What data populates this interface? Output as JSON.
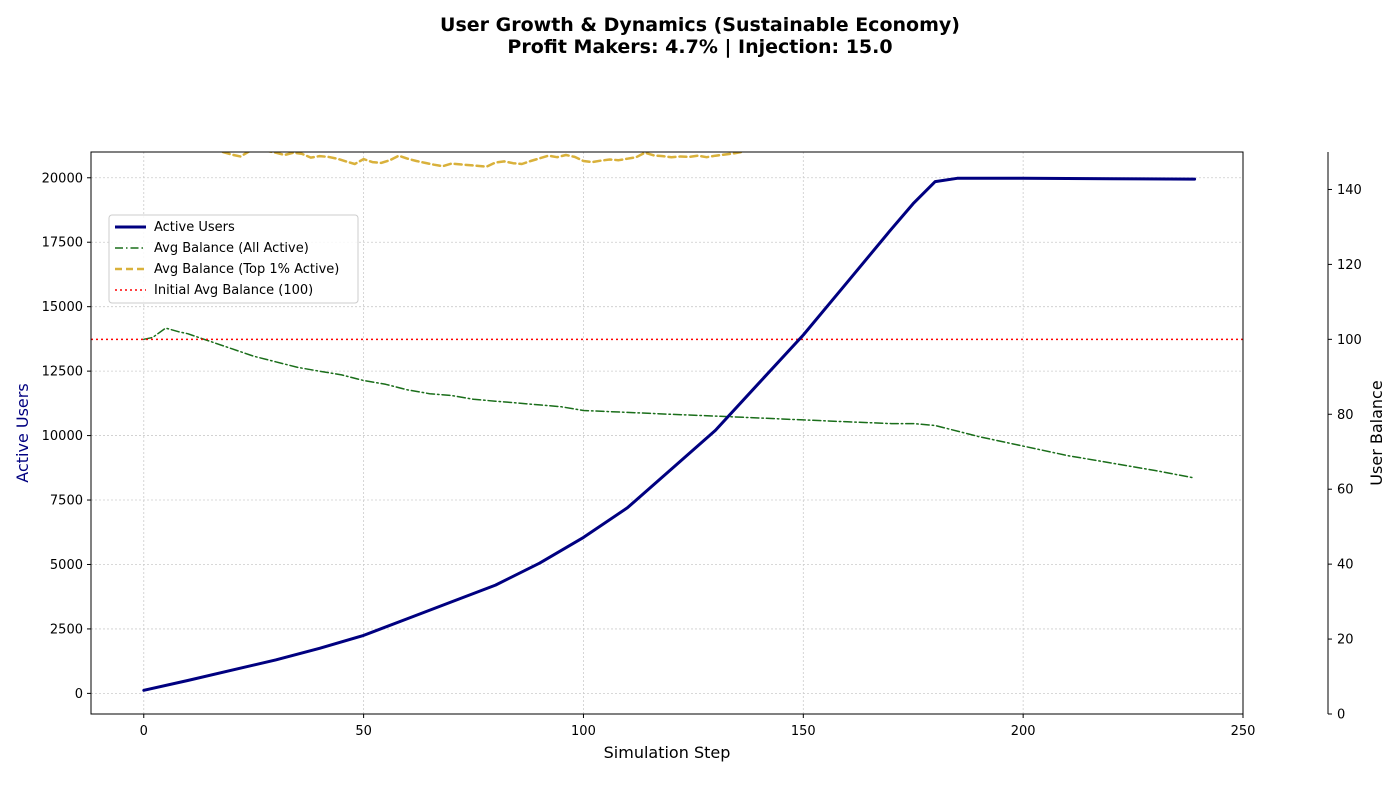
{
  "chart_data": {
    "type": "line",
    "title": "User Growth & Dynamics (Sustainable Economy)",
    "subtitle": "Profit Makers: 4.7% | Injection: 15.0",
    "xlabel": "Simulation Step",
    "ylabel_left": "Active Users",
    "ylabel_right": "User Balance",
    "xlim": [
      -12,
      250
    ],
    "ylim_left": [
      -800,
      21000
    ],
    "ylim_right": [
      0,
      150
    ],
    "x_ticks": [
      0,
      50,
      100,
      150,
      200,
      250
    ],
    "y_left_ticks": [
      0,
      2500,
      5000,
      7500,
      10000,
      12500,
      15000,
      17500,
      20000
    ],
    "y_right_ticks": [
      0,
      20,
      40,
      60,
      80,
      100,
      120,
      140
    ],
    "grid": true,
    "legend_position": "upper-left",
    "colors": {
      "active_users": "#000080",
      "avg_balance_all": "#1a6e1a",
      "avg_balance_top1": "#d9b13b",
      "initial_avg": "#ff0000"
    },
    "series": [
      {
        "name": "Active Users",
        "axis": "left",
        "style": "solid",
        "x": [
          0,
          10,
          20,
          30,
          40,
          50,
          60,
          70,
          80,
          90,
          100,
          110,
          120,
          130,
          140,
          150,
          160,
          170,
          175,
          180,
          185,
          200,
          220,
          239
        ],
        "values": [
          120,
          500,
          900,
          1300,
          1750,
          2250,
          2900,
          3550,
          4200,
          5050,
          6050,
          7200,
          8700,
          10200,
          12050,
          13900,
          15950,
          18000,
          19000,
          19850,
          19980,
          19980,
          19960,
          19950
        ]
      },
      {
        "name": "Avg Balance (All Active)",
        "axis": "right",
        "style": "dashdot",
        "x": [
          0,
          2,
          5,
          8,
          10,
          15,
          20,
          25,
          30,
          35,
          40,
          45,
          50,
          55,
          60,
          65,
          70,
          75,
          80,
          85,
          90,
          95,
          100,
          110,
          120,
          130,
          140,
          150,
          160,
          170,
          175,
          180,
          190,
          200,
          210,
          220,
          230,
          239
        ],
        "values": [
          100,
          100.5,
          103,
          102,
          101.5,
          99.5,
          97.5,
          95.5,
          94,
          92.5,
          91.5,
          90.5,
          89,
          88,
          86.5,
          85.5,
          85,
          84,
          83.5,
          83,
          82.5,
          82,
          81,
          80.5,
          80,
          79.5,
          79,
          78.5,
          78,
          77.5,
          77.5,
          77,
          74,
          71.5,
          69,
          67,
          65,
          63
        ]
      },
      {
        "name": "Avg Balance (Top 1% Active)",
        "axis": "right",
        "style": "dashed",
        "x": [
          18,
          20,
          22,
          24,
          26,
          28,
          30,
          32,
          34,
          36,
          38,
          40,
          42,
          44,
          46,
          48,
          50,
          52,
          54,
          56,
          58,
          60,
          62,
          64,
          66,
          68,
          70,
          72,
          74,
          76,
          78,
          80,
          82,
          84,
          86,
          88,
          90,
          92,
          94,
          96,
          98,
          100,
          102,
          104,
          106,
          108,
          110,
          112,
          114,
          116,
          118,
          120,
          122,
          124,
          126,
          128,
          130,
          132,
          134,
          136
        ],
        "values": [
          150,
          149.3,
          148.8,
          150.2,
          150.8,
          150.3,
          149.8,
          149.2,
          149.8,
          149.5,
          148.5,
          148.9,
          148.7,
          148.2,
          147.5,
          146.8,
          148.1,
          147.3,
          147.1,
          147.8,
          149.0,
          148.2,
          147.6,
          147.1,
          146.6,
          146.2,
          146.9,
          146.7,
          146.5,
          146.3,
          146.1,
          147.2,
          147.5,
          147.0,
          146.8,
          147.6,
          148.3,
          149.0,
          148.6,
          149.2,
          148.7,
          147.6,
          147.3,
          147.7,
          148.0,
          147.8,
          148.2,
          148.6,
          149.8,
          149.1,
          148.9,
          148.6,
          148.8,
          148.7,
          149.0,
          148.6,
          149.0,
          149.3,
          149.6,
          150.0
        ]
      },
      {
        "name": "Initial Avg Balance (100)",
        "axis": "right",
        "style": "dotted",
        "hline": 100
      }
    ]
  }
}
